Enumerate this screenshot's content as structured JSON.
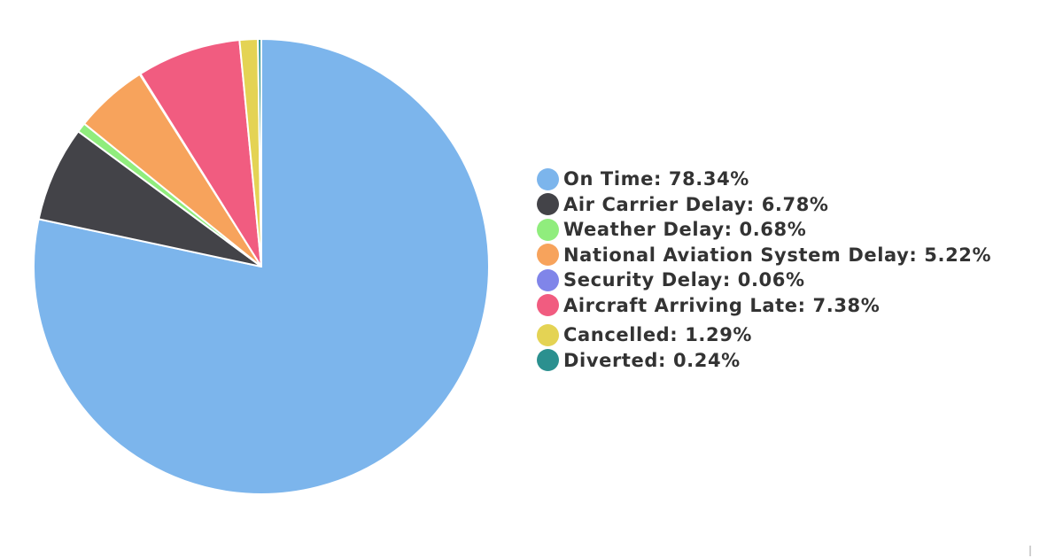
{
  "chart_data": {
    "type": "pie",
    "title": "",
    "start_angle_deg": 0,
    "direction": "counterclockwise",
    "slices": [
      {
        "label": "On Time",
        "value": 78.34,
        "display": "On Time: 78.34%",
        "color": "#7cb5ec"
      },
      {
        "label": "Air Carrier Delay",
        "value": 6.78,
        "display": "Air Carrier Delay: 6.78%",
        "color": "#434348"
      },
      {
        "label": "Weather Delay",
        "value": 0.68,
        "display": "Weather Delay: 0.68%",
        "color": "#90ed7d"
      },
      {
        "label": "National Aviation System Delay",
        "value": 5.22,
        "display": "National Aviation System Delay: 5.22%",
        "color": "#f7a35c"
      },
      {
        "label": "Security Delay",
        "value": 0.06,
        "display": "Security Delay: 0.06%",
        "color": "#8085e9"
      },
      {
        "label": "Aircraft Arriving Late",
        "value": 7.38,
        "display": "Aircraft Arriving Late: 7.38%",
        "color": "#f15c80"
      },
      {
        "label": "Cancelled",
        "value": 1.29,
        "display": "Cancelled: 1.29%",
        "color": "#e4d354"
      },
      {
        "label": "Diverted",
        "value": 0.24,
        "display": "Diverted: 0.24%",
        "color": "#2b908f"
      }
    ],
    "legend_position": "right"
  }
}
